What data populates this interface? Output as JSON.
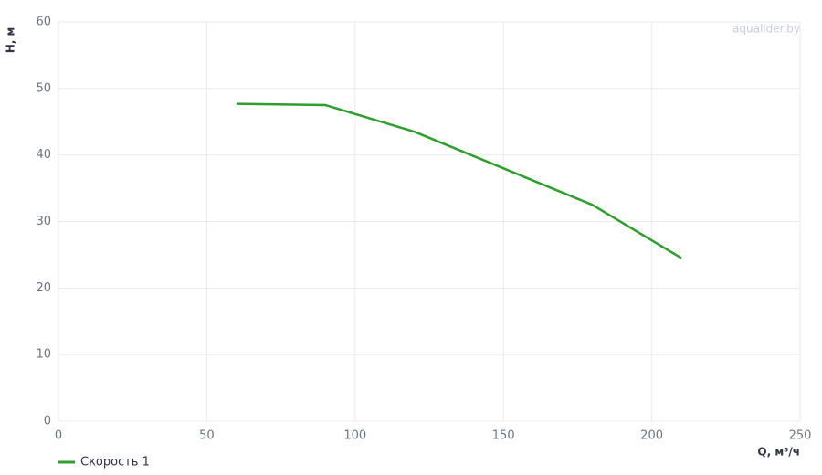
{
  "chart_data": {
    "type": "line",
    "x_label": "Q, м³/ч",
    "y_label": "H, м",
    "watermark": "aqualider.by",
    "x": [
      60,
      90,
      120,
      180,
      210
    ],
    "series": [
      {
        "name": "Скорость 1",
        "color": "#2ca02c",
        "values": [
          47.7,
          47.5,
          43.5,
          32.5,
          24.5
        ]
      }
    ],
    "xlim": [
      0,
      250
    ],
    "xticks": [
      0,
      50,
      100,
      150,
      200,
      250
    ],
    "ylim": [
      0,
      60
    ],
    "yticks": [
      0,
      10,
      20,
      30,
      40,
      50,
      60
    ],
    "grid": true,
    "legend": "bottom-left"
  }
}
